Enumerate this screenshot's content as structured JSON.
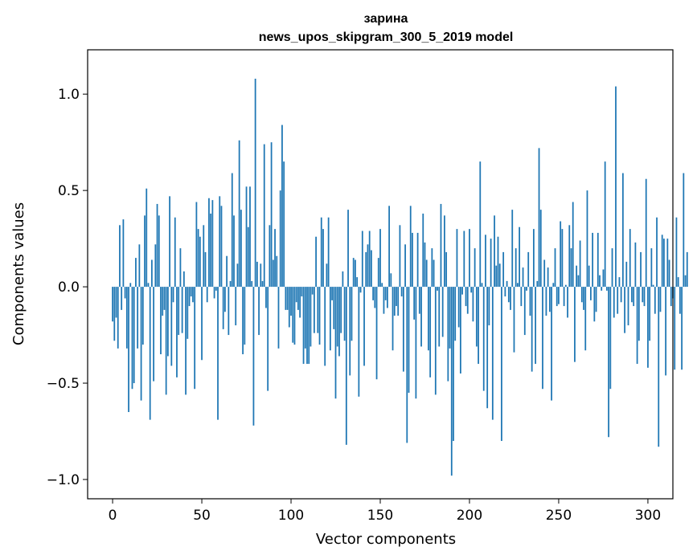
{
  "chart_data": {
    "type": "bar",
    "title": "зарина",
    "subtitle": "news_upos_skipgram_300_5_2019 model",
    "xlabel": "Vector components",
    "ylabel": "Components values",
    "xlim": [
      -14,
      314
    ],
    "ylim": [
      -1.1,
      1.23
    ],
    "xticks": [
      0,
      50,
      100,
      150,
      200,
      250,
      300
    ],
    "yticks": [
      -1.0,
      -0.5,
      0.0,
      0.5,
      1.0
    ],
    "xtick_labels": [
      "0",
      "50",
      "100",
      "150",
      "200",
      "250",
      "300"
    ],
    "ytick_labels": [
      "−1.0",
      "−0.5",
      "0.0",
      "0.5",
      "1.0"
    ],
    "bar_color": "#1f77b4",
    "values": [
      -0.18,
      -0.28,
      -0.16,
      -0.32,
      0.32,
      -0.12,
      0.35,
      -0.06,
      -0.32,
      -0.65,
      0.02,
      -0.53,
      -0.5,
      0.15,
      -0.32,
      0.22,
      -0.59,
      -0.3,
      0.37,
      0.51,
      0.02,
      -0.69,
      0.14,
      -0.49,
      0.22,
      0.43,
      0.37,
      -0.35,
      -0.15,
      -0.12,
      -0.56,
      -0.36,
      0.47,
      -0.41,
      -0.08,
      0.36,
      -0.47,
      -0.25,
      0.2,
      -0.24,
      0.08,
      -0.56,
      -0.27,
      -0.1,
      -0.05,
      -0.08,
      -0.53,
      0.44,
      0.3,
      0.26,
      -0.38,
      0.32,
      0.18,
      -0.08,
      0.46,
      0.38,
      0.45,
      -0.06,
      -0.02,
      -0.69,
      0.47,
      0.42,
      -0.22,
      -0.13,
      0.16,
      -0.25,
      0.03,
      0.59,
      0.37,
      -0.2,
      0.12,
      0.76,
      0.4,
      -0.35,
      -0.3,
      0.52,
      0.31,
      0.52,
      0.03,
      -0.72,
      1.08,
      0.13,
      -0.25,
      0.12,
      0.03,
      0.74,
      -0.11,
      -0.54,
      0.32,
      0.75,
      0.14,
      0.3,
      0.16,
      -0.32,
      0.5,
      0.84,
      0.65,
      -0.12,
      -0.12,
      -0.21,
      -0.15,
      -0.29,
      -0.3,
      -0.08,
      -0.12,
      -0.16,
      -0.05,
      -0.4,
      -0.32,
      -0.4,
      -0.4,
      -0.31,
      -0.04,
      -0.24,
      0.26,
      -0.24,
      -0.3,
      0.36,
      0.3,
      -0.41,
      0.12,
      0.36,
      -0.33,
      -0.07,
      -0.22,
      -0.58,
      -0.31,
      -0.36,
      -0.24,
      0.08,
      -0.28,
      -0.82,
      0.4,
      -0.46,
      -0.28,
      0.15,
      0.14,
      0.05,
      -0.57,
      -0.03,
      0.29,
      -0.41,
      0.18,
      0.22,
      0.29,
      0.19,
      -0.07,
      -0.11,
      -0.48,
      0.15,
      0.3,
      0.02,
      -0.14,
      -0.07,
      -0.11,
      0.42,
      0.07,
      -0.33,
      -0.15,
      -0.1,
      -0.15,
      0.32,
      -0.05,
      -0.44,
      0.22,
      -0.81,
      -0.55,
      0.42,
      0.28,
      -0.17,
      -0.58,
      0.28,
      -0.14,
      -0.31,
      0.38,
      0.23,
      0.14,
      -0.33,
      -0.47,
      0.2,
      0.14,
      -0.56,
      -0.02,
      -0.31,
      0.43,
      -0.26,
      0.37,
      0.18,
      -0.49,
      -0.32,
      -0.98,
      -0.8,
      -0.28,
      0.3,
      -0.21,
      -0.45,
      -0.04,
      0.29,
      -0.1,
      -0.14,
      0.3,
      -0.03,
      -0.18,
      0.2,
      -0.31,
      -0.4,
      0.65,
      0.02,
      -0.54,
      0.27,
      -0.63,
      -0.2,
      0.25,
      -0.69,
      0.37,
      0.11,
      0.26,
      0.12,
      -0.8,
      0.18,
      -0.05,
      0.03,
      -0.08,
      -0.12,
      0.4,
      -0.34,
      0.2,
      0.02,
      0.31,
      -0.1,
      0.1,
      -0.25,
      -0.02,
      0.18,
      -0.15,
      -0.44,
      0.3,
      -0.4,
      0.03,
      0.72,
      0.4,
      -0.53,
      0.14,
      -0.15,
      0.1,
      -0.13,
      -0.59,
      0.02,
      0.2,
      -0.1,
      -0.09,
      0.34,
      0.3,
      -0.1,
      0.01,
      -0.16,
      0.32,
      0.2,
      0.44,
      -0.39,
      0.11,
      0.06,
      0.24,
      -0.08,
      -0.12,
      -0.33,
      0.5,
      0.11,
      -0.07,
      0.28,
      -0.18,
      -0.13,
      0.28,
      0.06,
      -0.02,
      0.09,
      0.65,
      -0.02,
      -0.78,
      -0.53,
      0.2,
      -0.16,
      1.04,
      -0.14,
      0.05,
      -0.08,
      0.59,
      -0.24,
      0.13,
      -0.2,
      0.3,
      -0.08,
      -0.1,
      0.23,
      -0.4,
      -0.28,
      0.18,
      -0.08,
      -0.1,
      0.56,
      -0.42,
      -0.28,
      0.2,
      0.01,
      -0.14,
      0.36,
      -0.83,
      -0.13,
      0.27,
      0.25,
      -0.46,
      0.25,
      0.14,
      -0.1,
      -0.06,
      -0.43,
      0.36,
      0.05,
      -0.14,
      -0.43,
      0.59,
      0.06,
      0.18
    ]
  }
}
